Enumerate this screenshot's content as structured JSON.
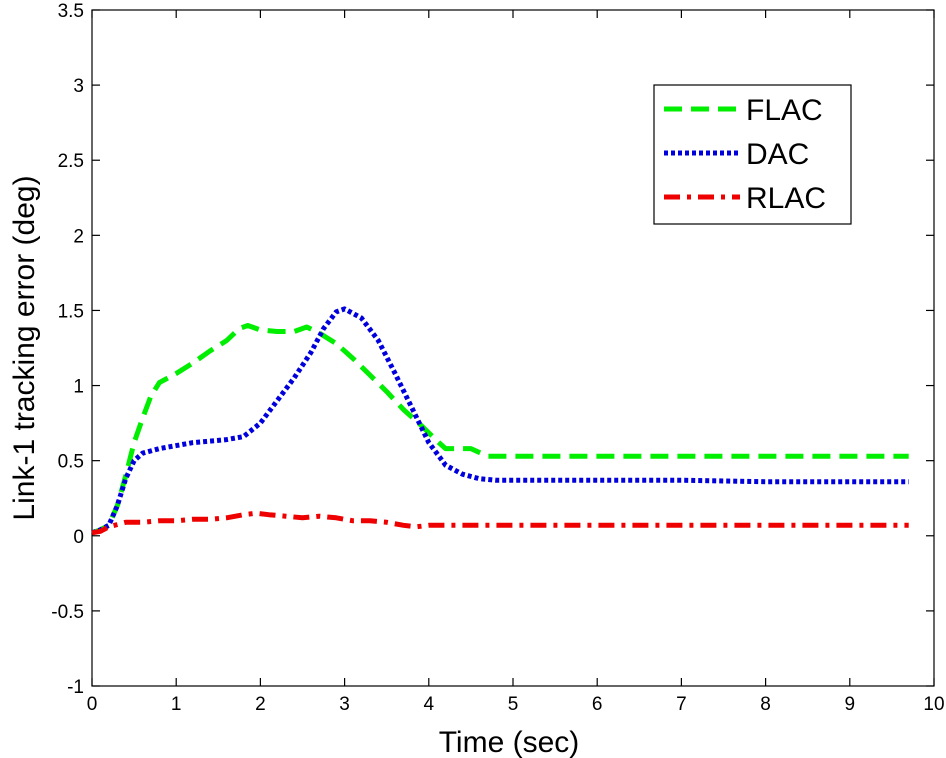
{
  "chart_data": {
    "type": "line",
    "title": "",
    "xlabel": "Time (sec)",
    "ylabel": "Link-1 tracking error (deg)",
    "xlim": [
      0,
      10
    ],
    "ylim": [
      -1,
      3.5
    ],
    "xticks": [
      0,
      1,
      2,
      3,
      4,
      5,
      6,
      7,
      8,
      9,
      10
    ],
    "yticks": [
      -1,
      -0.5,
      0,
      0.5,
      1,
      1.5,
      2,
      2.5,
      3,
      3.5
    ],
    "xtick_labels": [
      "0",
      "1",
      "2",
      "3",
      "4",
      "5",
      "6",
      "7",
      "8",
      "9",
      "10"
    ],
    "ytick_labels": [
      "-1",
      "-0.5",
      "0",
      "0.5",
      "1",
      "1.5",
      "2",
      "2.5",
      "3",
      "3.5"
    ],
    "grid": false,
    "legend_position": "top-right",
    "series": [
      {
        "name": "FLAC",
        "color": "#00ee00",
        "dash": "dashed",
        "x": [
          0,
          0.1,
          0.2,
          0.3,
          0.4,
          0.5,
          0.6,
          0.7,
          0.8,
          1.0,
          1.2,
          1.4,
          1.6,
          1.75,
          1.85,
          2.0,
          2.2,
          2.4,
          2.55,
          2.7,
          2.9,
          3.1,
          3.3,
          3.5,
          3.7,
          3.9,
          4.1,
          4.2,
          4.5,
          4.7,
          5.0,
          6.0,
          7.0,
          8.0,
          9.0,
          9.7
        ],
        "y": [
          0.02,
          0.04,
          0.07,
          0.2,
          0.4,
          0.62,
          0.78,
          0.93,
          1.02,
          1.08,
          1.15,
          1.23,
          1.3,
          1.38,
          1.4,
          1.37,
          1.36,
          1.36,
          1.39,
          1.35,
          1.28,
          1.18,
          1.07,
          0.96,
          0.84,
          0.74,
          0.63,
          0.58,
          0.58,
          0.53,
          0.53,
          0.53,
          0.53,
          0.53,
          0.53,
          0.53
        ]
      },
      {
        "name": "DAC",
        "color": "#0000dd",
        "dash": "dotted",
        "x": [
          0,
          0.1,
          0.2,
          0.3,
          0.4,
          0.5,
          0.6,
          0.8,
          1.0,
          1.2,
          1.4,
          1.6,
          1.8,
          2.0,
          2.2,
          2.4,
          2.6,
          2.75,
          2.9,
          3.0,
          3.2,
          3.4,
          3.6,
          3.8,
          4.0,
          4.2,
          4.4,
          4.6,
          4.8,
          5.0,
          6.0,
          7.0,
          8.0,
          9.0,
          9.7
        ],
        "y": [
          0.02,
          0.04,
          0.07,
          0.2,
          0.38,
          0.5,
          0.55,
          0.58,
          0.6,
          0.62,
          0.63,
          0.64,
          0.66,
          0.75,
          0.9,
          1.05,
          1.22,
          1.38,
          1.49,
          1.51,
          1.45,
          1.3,
          1.08,
          0.85,
          0.62,
          0.47,
          0.41,
          0.38,
          0.37,
          0.37,
          0.37,
          0.37,
          0.36,
          0.36,
          0.36
        ]
      },
      {
        "name": "RLAC",
        "color": "#ee0000",
        "dash": "dashdot",
        "x": [
          0,
          0.1,
          0.2,
          0.4,
          0.6,
          0.8,
          1.0,
          1.2,
          1.4,
          1.6,
          1.8,
          1.95,
          2.1,
          2.3,
          2.5,
          2.7,
          2.9,
          3.1,
          3.3,
          3.5,
          3.7,
          3.85,
          4.0,
          5.0,
          6.0,
          7.0,
          8.0,
          9.0,
          9.7
        ],
        "y": [
          0.02,
          0.03,
          0.06,
          0.09,
          0.09,
          0.1,
          0.1,
          0.11,
          0.11,
          0.12,
          0.14,
          0.15,
          0.14,
          0.13,
          0.12,
          0.13,
          0.12,
          0.1,
          0.1,
          0.09,
          0.07,
          0.06,
          0.07,
          0.07,
          0.07,
          0.07,
          0.07,
          0.07,
          0.07
        ]
      }
    ]
  }
}
